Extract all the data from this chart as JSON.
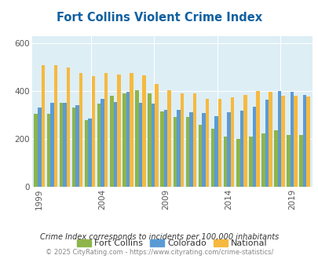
{
  "title": "Fort Collins Violent Crime Index",
  "years": [
    1999,
    2000,
    2001,
    2002,
    2003,
    2004,
    2005,
    2006,
    2007,
    2008,
    2009,
    2010,
    2011,
    2012,
    2013,
    2014,
    2015,
    2016,
    2017,
    2018,
    2019,
    2020
  ],
  "fort_collins": [
    305,
    305,
    352,
    330,
    280,
    347,
    380,
    390,
    405,
    390,
    315,
    290,
    290,
    260,
    243,
    210,
    200,
    208,
    222,
    235,
    215,
    215
  ],
  "colorado": [
    330,
    350,
    352,
    340,
    285,
    367,
    355,
    397,
    350,
    347,
    320,
    320,
    310,
    308,
    294,
    310,
    318,
    335,
    365,
    400,
    398,
    385
  ],
  "national": [
    510,
    510,
    500,
    475,
    463,
    475,
    470,
    477,
    465,
    430,
    405,
    390,
    390,
    368,
    368,
    375,
    383,
    400,
    397,
    380,
    380,
    378
  ],
  "fc_color": "#8db54b",
  "co_color": "#5b9bd5",
  "nat_color": "#f6b93f",
  "bg_color": "#ddeef5",
  "title_color": "#1060a0",
  "yticks": [
    0,
    200,
    400,
    600
  ],
  "xticks_labels": [
    "1999",
    "2004",
    "2009",
    "2014",
    "2019"
  ],
  "xticks_pos": [
    0,
    5,
    10,
    15,
    20
  ],
  "ylim": [
    0,
    630
  ],
  "subtitle": "Crime Index corresponds to incidents per 100,000 inhabitants",
  "footer": "© 2025 CityRating.com - https://www.cityrating.com/crime-statistics/",
  "subtitle_color": "#333333",
  "footer_color": "#888888",
  "legend_labels": [
    "Fort Collins",
    "Colorado",
    "National"
  ]
}
